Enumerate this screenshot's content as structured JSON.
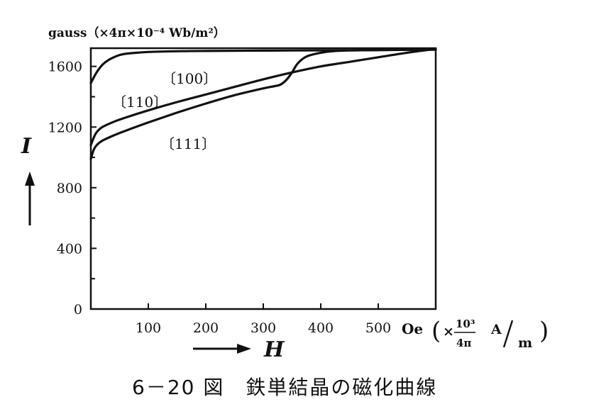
{
  "chart_data": {
    "type": "line",
    "title": "6－20 図　鉄単結晶の磁化曲線",
    "ylabel": "I",
    "xlabel": "H",
    "y_unit": "gauss（×4π×10⁻⁴ Wb/m²）",
    "x_unit": "Oe",
    "x_unit_conversion": "(×10³/4π A/m)",
    "x_unit_factor": "×",
    "x_unit_num": "10³",
    "x_unit_den": "4π",
    "x_unit_si_num": "A",
    "x_unit_si_den": "m",
    "xlim": [
      0,
      600
    ],
    "ylim": [
      0,
      1720
    ],
    "x_ticks": [
      100,
      200,
      300,
      400,
      500
    ],
    "y_ticks": [
      0,
      400,
      800,
      1200,
      1600
    ],
    "grid": false,
    "series": [
      {
        "name": "〔100〕",
        "x": [
          0,
          10,
          20,
          30,
          40,
          50,
          60,
          80,
          100,
          150,
          200,
          300,
          400,
          500,
          600
        ],
        "y": [
          1490,
          1560,
          1610,
          1640,
          1660,
          1675,
          1683,
          1690,
          1695,
          1700,
          1702,
          1704,
          1706,
          1708,
          1710
        ]
      },
      {
        "name": "〔110〕",
        "x": [
          0,
          5,
          10,
          20,
          40,
          60,
          100,
          150,
          200,
          250,
          300,
          350,
          400,
          450,
          500,
          550,
          600
        ],
        "y": [
          1080,
          1130,
          1165,
          1200,
          1235,
          1262,
          1310,
          1365,
          1415,
          1465,
          1515,
          1560,
          1600,
          1630,
          1660,
          1690,
          1715
        ]
      },
      {
        "name": "〔111〕",
        "x": [
          0,
          5,
          10,
          20,
          40,
          60,
          100,
          150,
          200,
          250,
          300,
          320,
          330,
          340,
          350,
          360,
          375,
          400,
          420,
          450,
          500,
          600
        ],
        "y": [
          990,
          1050,
          1080,
          1110,
          1145,
          1175,
          1230,
          1295,
          1355,
          1410,
          1455,
          1470,
          1480,
          1510,
          1560,
          1620,
          1665,
          1690,
          1700,
          1705,
          1708,
          1712
        ]
      }
    ]
  }
}
